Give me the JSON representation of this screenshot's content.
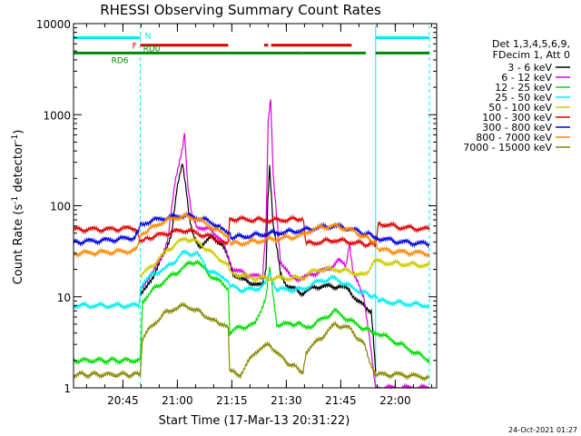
{
  "chart_data": {
    "type": "line",
    "title": "RHESSI Observing Summary Count Rates",
    "xlabel": "Start Time (17-Mar-13 20:31:22)",
    "ylabel_main": "Count Rate (s",
    "ylabel_exp1": "-1",
    "ylabel_mid": " detector",
    "ylabel_exp2": "-1",
    "ylabel_end": ")",
    "yscale": "log",
    "ylim": [
      1,
      10000
    ],
    "xlim_minutes": [
      0,
      100
    ],
    "y_ticks": [
      {
        "value": 1,
        "label": "1"
      },
      {
        "value": 10,
        "label": "10"
      },
      {
        "value": 100,
        "label": "100"
      },
      {
        "value": 1000,
        "label": "1000"
      },
      {
        "value": 10000,
        "label": "10000"
      }
    ],
    "x_ticks": [
      {
        "minute": 13.6,
        "label": "20:45"
      },
      {
        "minute": 28.6,
        "label": "21:00"
      },
      {
        "minute": 43.6,
        "label": "21:15"
      },
      {
        "minute": 58.6,
        "label": "21:30"
      },
      {
        "minute": 73.6,
        "label": "21:45"
      },
      {
        "minute": 88.6,
        "label": "22:00"
      }
    ],
    "legend": {
      "header": [
        "Det 1,3,4,5,6,9,",
        "FDecim 1, Att 0"
      ],
      "entries": [
        {
          "label": "3 - 6 keV",
          "color": "#000000"
        },
        {
          "label": "6 - 12 keV",
          "color": "#dd00dd"
        },
        {
          "label": "12 - 25 keV",
          "color": "#00dd00"
        },
        {
          "label": "25 - 50 keV",
          "color": "#00eeee"
        },
        {
          "label": "50 - 100 keV",
          "color": "#cccc00"
        },
        {
          "label": "100 - 300 keV",
          "color": "#dd0000"
        },
        {
          "label": "300 - 800 keV",
          "color": "#0000dd"
        },
        {
          "label": "800 - 7000 keV",
          "color": "#ff8800"
        },
        {
          "label": "7000 - 15000 keV",
          "color": "#888800"
        }
      ]
    },
    "night_boundaries_minutes": [
      0,
      18.4,
      83.2,
      98.0
    ],
    "flags": [
      {
        "label": "N",
        "color": "#00eeee",
        "level": 7000,
        "segments": [
          [
            0,
            18.4
          ],
          [
            83.2,
            98.0
          ]
        ]
      },
      {
        "label": "F",
        "color": "#dd0000",
        "level": 5800,
        "segments": [
          [
            18.4,
            42.6
          ],
          [
            52.5,
            53.6
          ],
          [
            54.4,
            76.6
          ]
        ]
      },
      {
        "label": "RD0",
        "color": "#008800",
        "level": 4750,
        "segments": [
          [
            18.4,
            42.6
          ],
          [
            42.6,
            63.2
          ],
          [
            63.2,
            80.5
          ],
          [
            83.2,
            98.0
          ]
        ]
      },
      {
        "label": "RD6",
        "color": "#008800",
        "level": 4750,
        "segments": [
          [
            0,
            18.4
          ]
        ]
      }
    ],
    "series": [
      {
        "name": "3 - 6 keV",
        "color": "#000000",
        "x": [
          18.4,
          22,
          25,
          27,
          28.5,
          30,
          31,
          32,
          33,
          34,
          35,
          36,
          38,
          41,
          44,
          47,
          50,
          52,
          53,
          53.5,
          54,
          55,
          57,
          59,
          61,
          63,
          65,
          67,
          70,
          73,
          76,
          78,
          80,
          82,
          83.2
        ],
        "y": [
          11,
          17,
          30,
          50,
          150,
          300,
          160,
          70,
          45,
          38,
          36,
          40,
          45,
          38,
          18,
          15,
          14,
          13,
          20,
          120,
          280,
          60,
          18,
          13,
          12,
          11,
          12,
          13,
          13,
          13,
          12,
          9,
          8,
          7,
          1.5
        ]
      },
      {
        "name": "6 - 12 keV",
        "color": "#dd00dd",
        "x": [
          18.4,
          21,
          24,
          26,
          28,
          30,
          30.6,
          31.5,
          32.5,
          34,
          36,
          38,
          41,
          44,
          47,
          50,
          52,
          53,
          53.6,
          54.3,
          55,
          57,
          60,
          63,
          66,
          70,
          73,
          75,
          76,
          77,
          80,
          83.2,
          83.5,
          98
        ],
        "y": [
          12,
          17,
          25,
          45,
          180,
          450,
          590,
          160,
          80,
          60,
          55,
          55,
          40,
          20,
          18,
          17,
          16,
          60,
          800,
          1550,
          200,
          25,
          16,
          16,
          18,
          20,
          25,
          22,
          40,
          18,
          10,
          1,
          1,
          1
        ]
      },
      {
        "name": "12 - 25 keV",
        "color": "#00dd00",
        "x": [
          0,
          18.4,
          19,
          22,
          25,
          28,
          31,
          34,
          37,
          40,
          42.6,
          43,
          45,
          50,
          53,
          54,
          56,
          60,
          63.2,
          64,
          68,
          72,
          76,
          80,
          83.2,
          84,
          90,
          98
        ],
        "y": [
          2,
          2,
          9,
          12,
          15,
          18,
          22,
          25,
          18,
          15,
          12,
          4,
          4.5,
          5,
          10,
          20,
          5,
          5,
          5,
          4.5,
          5.5,
          7,
          5.5,
          4.5,
          4,
          4,
          3,
          2
        ]
      },
      {
        "name": "25 - 50 keV",
        "color": "#00eeee",
        "x": [
          0,
          10,
          18,
          18.4,
          19,
          22,
          25,
          28,
          30,
          34,
          37,
          40,
          42.6,
          43.5,
          46,
          50,
          53,
          54,
          56,
          60,
          63.5,
          64.5,
          68,
          72,
          76,
          80,
          83.2,
          84,
          90,
          98
        ],
        "y": [
          8,
          8,
          8,
          11,
          14,
          18,
          20,
          25,
          30,
          30,
          20,
          17,
          14,
          13,
          12,
          12,
          14,
          18,
          12,
          12,
          12,
          13,
          15,
          16,
          13,
          11,
          10,
          9,
          8.5,
          8
        ]
      },
      {
        "name": "50 - 100 keV",
        "color": "#cccc00",
        "x": [
          18.4,
          20,
          23,
          26,
          29,
          31,
          34,
          37,
          40,
          42.6,
          43.5,
          47,
          50,
          54,
          58,
          63.5,
          64.5,
          68,
          72,
          76,
          80,
          83.2,
          84,
          90,
          98
        ],
        "y": [
          17,
          19,
          25,
          33,
          40,
          44,
          40,
          33,
          26,
          22,
          18,
          17,
          16,
          16,
          16,
          16,
          18,
          20,
          20,
          19,
          17,
          25,
          24,
          23,
          22
        ]
      },
      {
        "name": "100 - 300 keV",
        "color": "#dd0000",
        "x": [
          0,
          10,
          17,
          18.4,
          20,
          24,
          28,
          31,
          34,
          37,
          40,
          42.6,
          43,
          46,
          50,
          54,
          58,
          62,
          63.3,
          64,
          68,
          72,
          76,
          80,
          83.2,
          84,
          90,
          98
        ],
        "y": [
          55,
          55,
          57,
          42,
          44,
          48,
          52,
          54,
          50,
          46,
          42,
          40,
          72,
          71,
          70,
          69,
          70,
          71,
          72,
          38,
          40,
          42,
          40,
          38,
          37,
          64,
          58,
          55
        ]
      },
      {
        "name": "300 - 800 keV",
        "color": "#0000dd",
        "x": [
          0,
          10,
          17,
          18.4,
          20,
          24,
          28,
          31,
          34,
          37,
          40,
          42.6,
          43.5,
          47,
          51,
          55,
          60,
          63.5,
          64.5,
          68,
          72,
          76,
          80,
          83.2,
          84,
          90,
          98
        ],
        "y": [
          40,
          42,
          45,
          62,
          66,
          72,
          76,
          78,
          74,
          68,
          60,
          52,
          45,
          46,
          48,
          50,
          52,
          54,
          55,
          58,
          60,
          56,
          50,
          46,
          44,
          40,
          38
        ]
      },
      {
        "name": "800 - 7000 keV",
        "color": "#ff8800",
        "x": [
          0,
          10,
          17,
          18.4,
          20,
          24,
          28,
          31,
          34,
          37,
          40,
          42.6,
          43.5,
          47,
          51,
          55,
          60,
          63.5,
          64.5,
          68,
          72,
          76,
          80,
          83.2,
          84,
          90,
          98
        ],
        "y": [
          30,
          31,
          32,
          45,
          52,
          65,
          74,
          76,
          72,
          62,
          52,
          44,
          38,
          39,
          41,
          43,
          45,
          48,
          52,
          58,
          60,
          55,
          46,
          40,
          33,
          31,
          30
        ]
      },
      {
        "name": "7000 - 15000 keV",
        "color": "#888800",
        "x": [
          0,
          18.4,
          19,
          22,
          25,
          28,
          31,
          34,
          37,
          40,
          42.6,
          43,
          46,
          50,
          54,
          58,
          63.2,
          64,
          68,
          72,
          76,
          80,
          83.2,
          84,
          90,
          98
        ],
        "y": [
          1.4,
          1.4,
          3.5,
          5,
          6.5,
          7.5,
          8,
          7,
          6,
          5,
          4.5,
          1.5,
          1.4,
          2.5,
          3,
          2,
          1.5,
          2.5,
          3.5,
          5,
          4.5,
          3,
          1.3,
          1.4,
          1.4,
          1.3
        ]
      }
    ]
  },
  "footer_timestamp": "24-Oct-2021 01:27"
}
